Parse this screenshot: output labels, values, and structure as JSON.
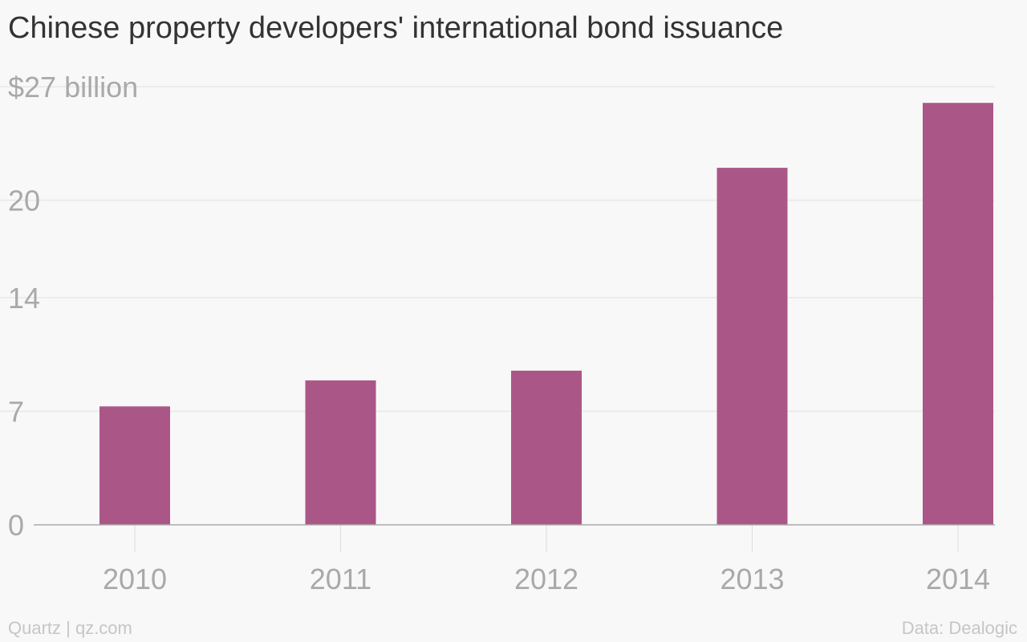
{
  "title": "Chinese property developers' international bond issuance",
  "footer": {
    "credit": "Quartz | qz.com",
    "source": "Data: Dealogic"
  },
  "colors": {
    "bar": "#aa5787",
    "grid": "#e8e8e8",
    "axis": "#aaaaaa",
    "tick_text": "#a9a9a9",
    "title": "#333333",
    "background": "#f8f8f8"
  },
  "chart_data": {
    "type": "bar",
    "title": "Chinese property developers' international bond issuance",
    "categories": [
      "2010",
      "2011",
      "2012",
      "2013",
      "2014"
    ],
    "values": [
      7.3,
      8.9,
      9.5,
      22.0,
      26.0
    ],
    "xlabel": "",
    "ylabel": "",
    "ylim": [
      0,
      27
    ],
    "yticks": [
      0,
      7,
      14,
      20,
      27
    ],
    "ytick_labels": [
      "0",
      "7",
      "14",
      "20",
      "$27 billion"
    ],
    "grid": true,
    "legend": "none"
  }
}
